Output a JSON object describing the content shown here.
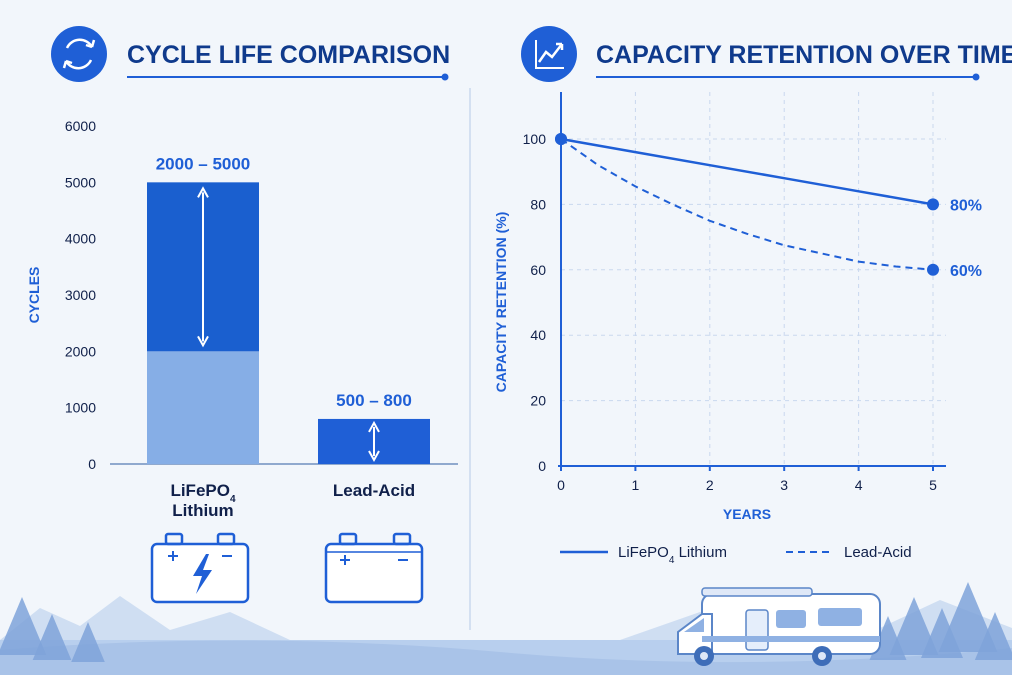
{
  "colors": {
    "primary": "#1f5fd6",
    "dark_bar": "#1a5fcf",
    "light_bar": "#86aee6",
    "title": "#0f3a8c",
    "text": "#10204a",
    "grid": "#c9d8ee",
    "scenery": "#a9c3e8"
  },
  "icons": {
    "cycle_header": "cycle-arrows-icon",
    "capacity_header": "line-chart-icon",
    "lithium_battery": "lightning-battery-icon",
    "lead_battery": "battery-icon",
    "scenery": "rv-camper-icon"
  },
  "chart_data": [
    {
      "type": "bar",
      "title": "CYCLE LIFE COMPARISON",
      "ylabel": "CYCLES",
      "xlabel": "",
      "ylim": [
        0,
        6000
      ],
      "yticks": [
        "0",
        "1000",
        "2000",
        "3000",
        "4000",
        "5000",
        "6000"
      ],
      "grid": false,
      "categories": [
        {
          "name": "LiFePO",
          "sub": "4",
          "name2": "Lithium",
          "low": 2000,
          "high": 5000,
          "range_label": "2000 – 5000"
        },
        {
          "name": "Lead-Acid",
          "low": 500,
          "high": 800,
          "range_label": "500 – 800"
        }
      ]
    },
    {
      "type": "line",
      "title": "CAPACITY RETENTION OVER TIME",
      "xlabel": "YEARS",
      "ylabel": "CAPACITY RETENTION (%)",
      "xlim": [
        0,
        5
      ],
      "ylim": [
        0,
        100
      ],
      "xticks": [
        "0",
        "1",
        "2",
        "3",
        "4",
        "5"
      ],
      "yticks": [
        "0",
        "20",
        "40",
        "60",
        "80",
        "100"
      ],
      "grid": true,
      "legend_position": "bottom",
      "series": [
        {
          "name": "LiFePO",
          "sub": "4",
          "name2": " Lithium",
          "style": "solid",
          "x": [
            0,
            1,
            2,
            3,
            4,
            5
          ],
          "values": [
            100,
            96,
            92,
            88,
            84,
            80
          ],
          "end_label": "80%"
        },
        {
          "name": "Lead-Acid",
          "style": "dashed",
          "x": [
            0,
            0.5,
            1,
            1.5,
            2,
            2.5,
            3,
            3.5,
            4,
            4.5,
            5
          ],
          "values": [
            100,
            92,
            85.5,
            80,
            75,
            71,
            67.5,
            65,
            62.5,
            61,
            60
          ],
          "end_label": "60%"
        }
      ]
    }
  ]
}
